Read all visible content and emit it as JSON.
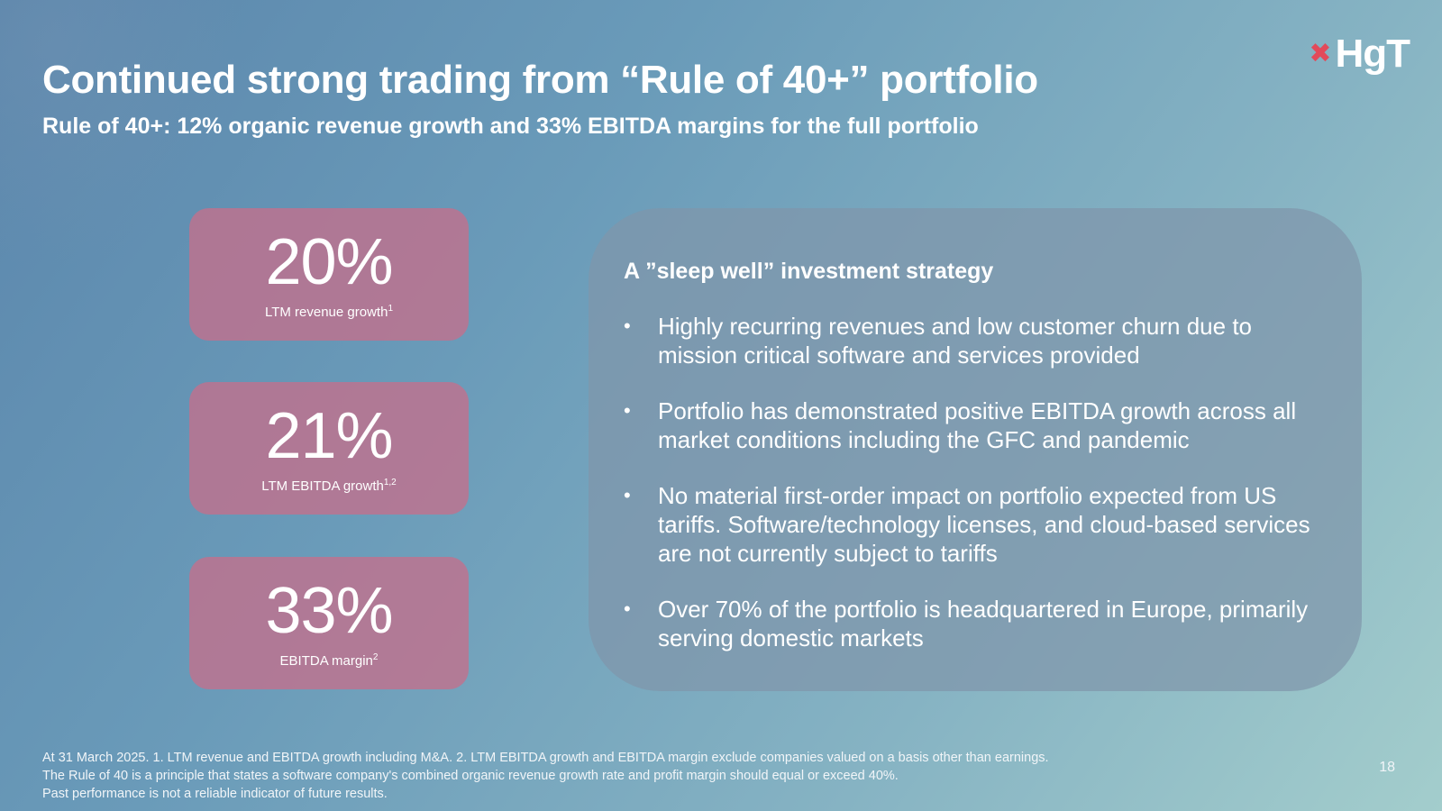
{
  "logo": {
    "mark": "✖",
    "text": "HgT"
  },
  "title": "Continued strong trading from “Rule of 40+” portfolio",
  "subtitle": "Rule of 40+: 12% organic revenue growth and 33% EBITDA margins for the full portfolio",
  "metrics": [
    {
      "value": "20%",
      "label": "LTM revenue growth",
      "sup": "1"
    },
    {
      "value": "21%",
      "label": "LTM EBITDA growth",
      "sup": "1,2"
    },
    {
      "value": "33%",
      "label": "EBITDA margin",
      "sup": "2"
    }
  ],
  "panel": {
    "heading": "A ”sleep well” investment strategy",
    "bullet_symbol": "•",
    "bullets": [
      "Highly recurring revenues and low customer churn due to mission critical software and services provided",
      "Portfolio has demonstrated positive EBITDA growth across all market conditions including the GFC and pandemic",
      "No material first-order impact on portfolio expected from US tariffs. Software/technology licenses, and cloud-based services are not currently subject to tariffs",
      "Over 70% of the portfolio is headquartered in Europe, primarily serving domestic markets"
    ]
  },
  "footnotes": [
    "At 31 March 2025. 1. LTM revenue and EBITDA growth including M&A. 2. LTM EBITDA growth and EBITDA margin exclude companies valued on a basis other than earnings.",
    "The Rule of 40 is a principle that states a software company's combined organic revenue growth rate and profit margin should equal or exceed 40%.",
    "Past performance is not a reliable indicator of future results."
  ],
  "page_number": "18",
  "colors": {
    "logo_accent": "#e24a5a",
    "metric_card": "#c4708c",
    "panel": "#8096aa",
    "background_start": "#5b86ac",
    "background_end": "#a3cdcc"
  }
}
